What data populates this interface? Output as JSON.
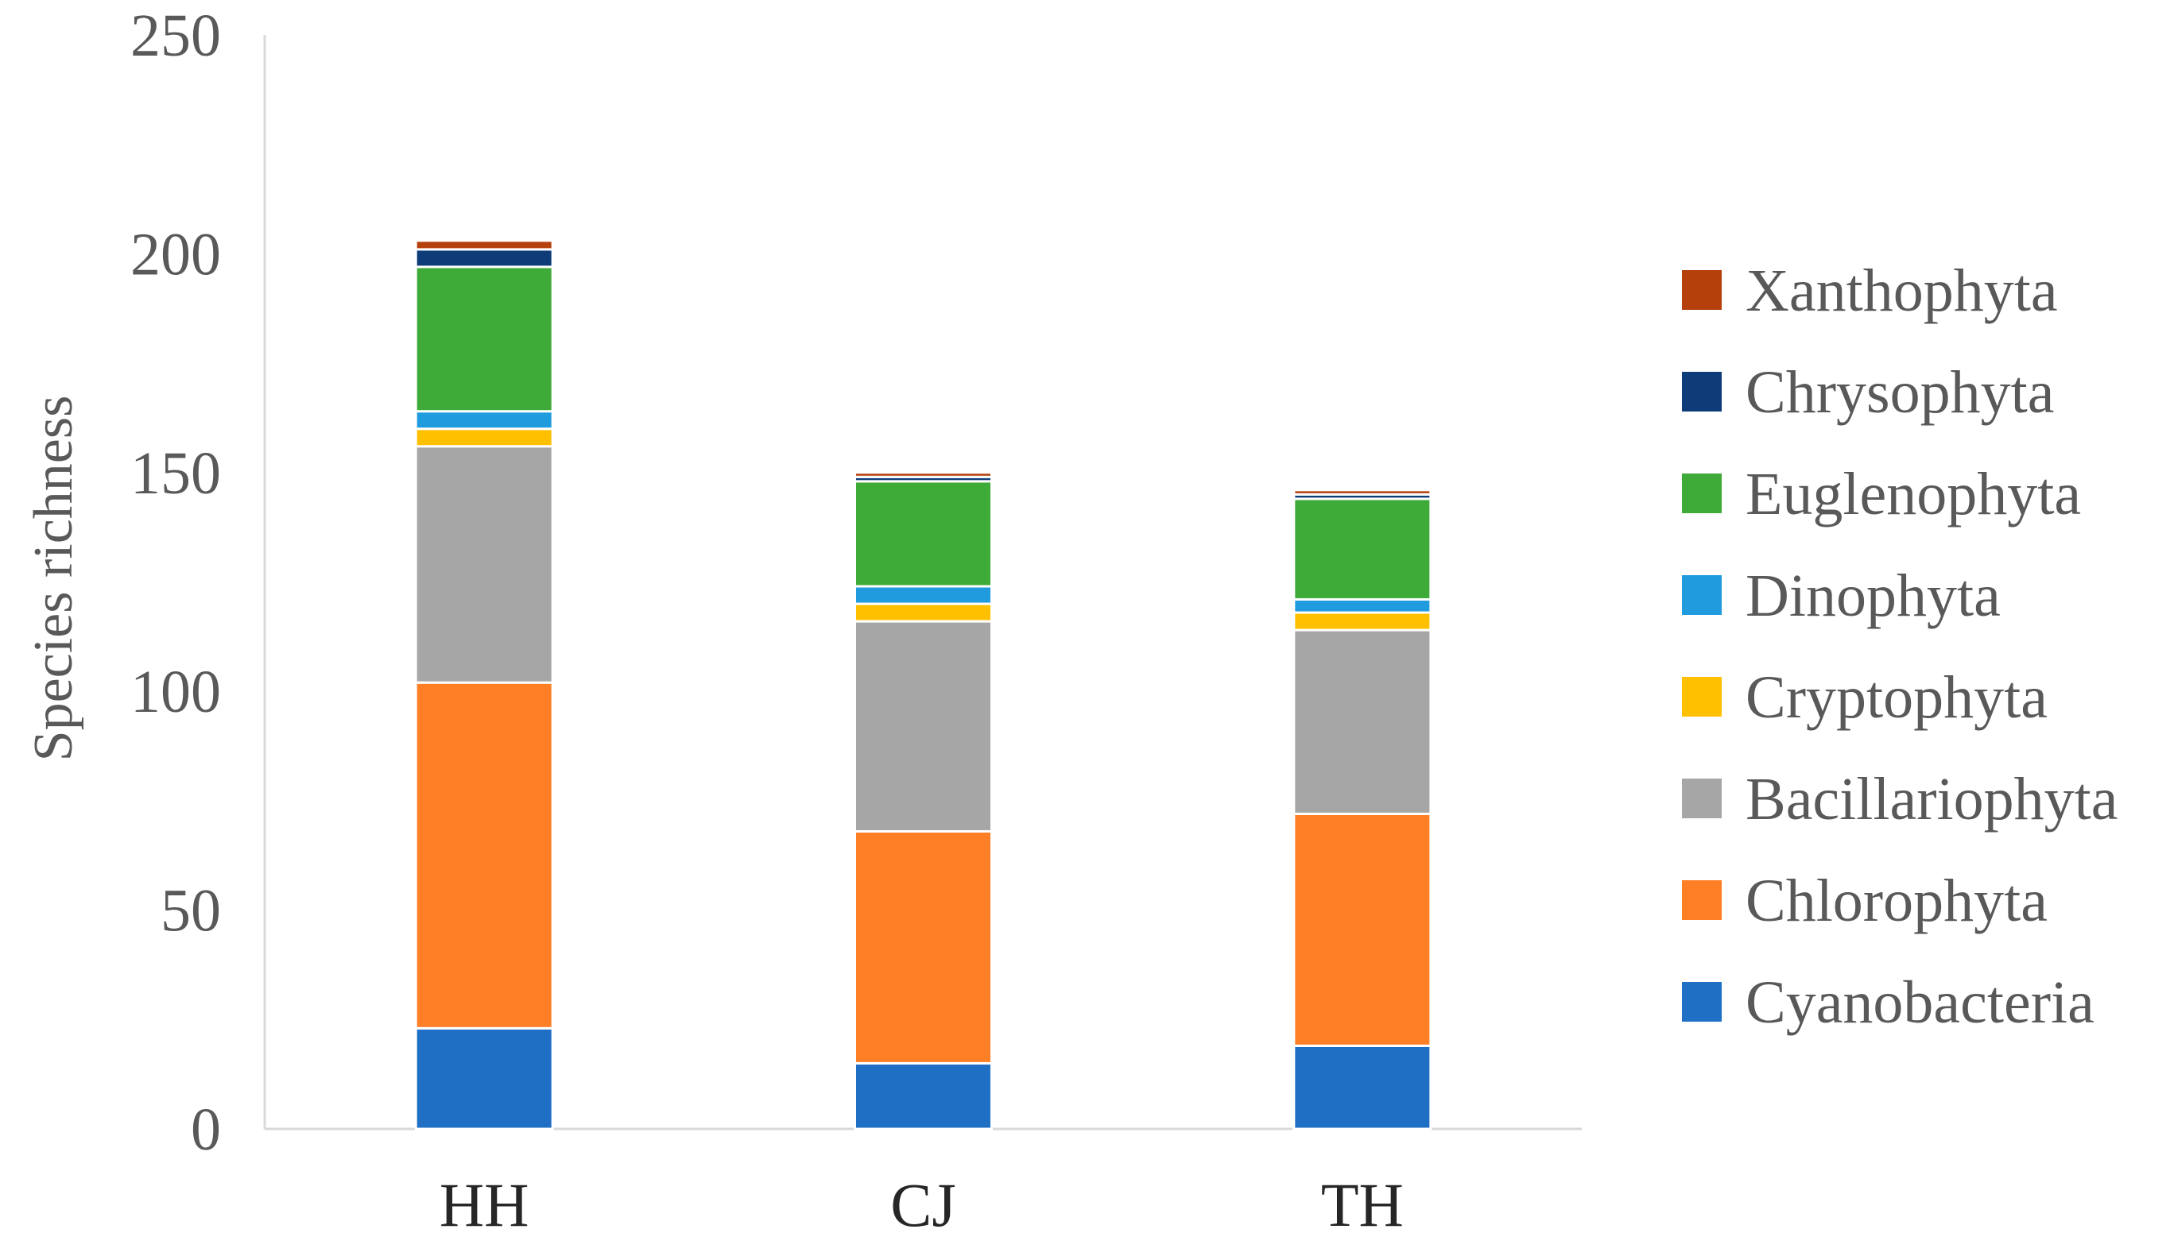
{
  "chart_data": {
    "type": "bar",
    "stacked": true,
    "title": "",
    "xlabel": "",
    "ylabel": "Species richness",
    "ylim": [
      0,
      250
    ],
    "yticks": [
      "0",
      "50",
      "100",
      "150",
      "200",
      "250"
    ],
    "grid": false,
    "legend_position": "right",
    "categories": [
      "HH",
      "CJ",
      "TH"
    ],
    "series": [
      {
        "name": "Cyanobacteria",
        "color": "#1F6FC5",
        "values": [
          23,
          15,
          19
        ]
      },
      {
        "name": "Chlorophyta",
        "color": "#FF7F27",
        "values": [
          79,
          53,
          53
        ]
      },
      {
        "name": "Bacillariophyta",
        "color": "#A6A6A6",
        "values": [
          54,
          48,
          42
        ]
      },
      {
        "name": "Cryptophyta",
        "color": "#FFC000",
        "values": [
          4,
          4,
          4
        ]
      },
      {
        "name": "Dinophyta",
        "color": "#1F9BDE",
        "values": [
          4,
          4,
          3
        ]
      },
      {
        "name": "Euglenophyta",
        "color": "#3EAA38",
        "values": [
          33,
          24,
          23
        ]
      },
      {
        "name": "Chrysophyta",
        "color": "#0E3C79",
        "values": [
          4,
          1,
          1
        ]
      },
      {
        "name": "Xanthophyta",
        "color": "#B5400C",
        "values": [
          2,
          1,
          1
        ]
      }
    ]
  }
}
